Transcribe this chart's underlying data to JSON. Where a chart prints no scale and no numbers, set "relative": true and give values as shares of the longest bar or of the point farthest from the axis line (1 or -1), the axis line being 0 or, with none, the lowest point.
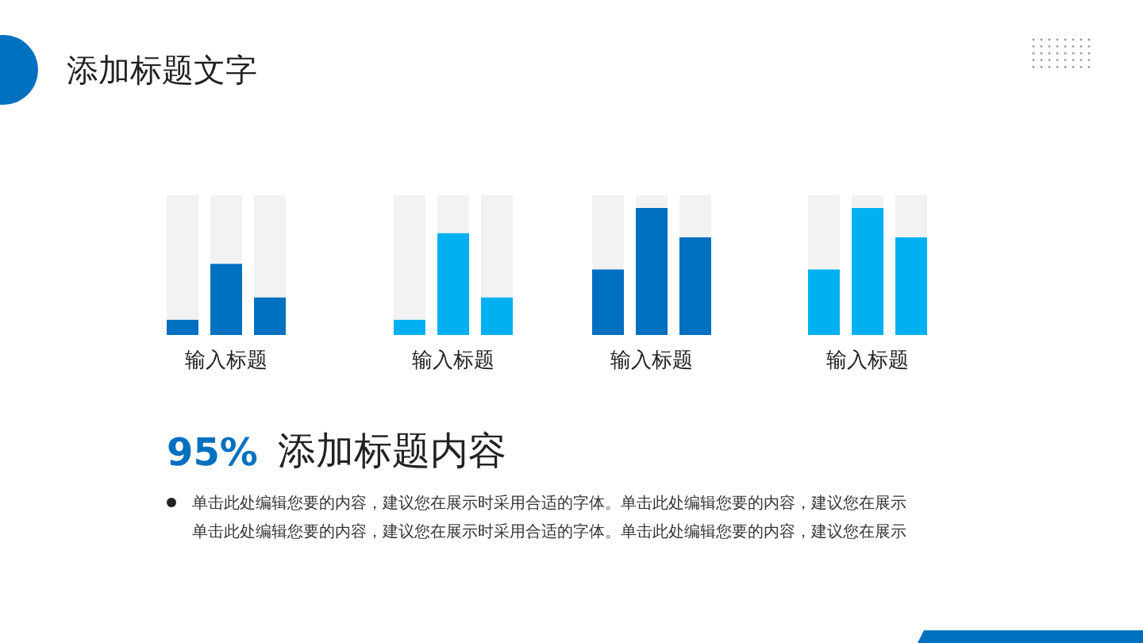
{
  "chart_data": [
    {
      "type": "bar",
      "relative": true,
      "stacked": true,
      "categories": [
        null,
        null,
        null
      ],
      "xlabel": "输入标题",
      "series": [
        {
          "color": "#0070c0",
          "values": [
            0.11,
            0.51,
            0.27
          ]
        },
        {
          "color": "#f2f2f2",
          "values": [
            0.89,
            0.49,
            0.73
          ]
        }
      ]
    },
    {
      "type": "bar",
      "relative": true,
      "stacked": true,
      "categories": [
        null,
        null,
        null
      ],
      "xlabel": "输入标题",
      "series": [
        {
          "color": "#00b0f0",
          "values": [
            0.11,
            0.73,
            0.27
          ]
        },
        {
          "color": "#f2f2f2",
          "values": [
            0.89,
            0.27,
            0.73
          ]
        }
      ]
    },
    {
      "type": "bar",
      "relative": true,
      "stacked": true,
      "categories": [
        null,
        null,
        null
      ],
      "xlabel": "输入标题",
      "series": [
        {
          "color": "#0070c0",
          "values": [
            0.47,
            0.91,
            0.7
          ]
        },
        {
          "color": "#f2f2f2",
          "values": [
            0.53,
            0.09,
            0.3
          ]
        }
      ]
    },
    {
      "type": "bar",
      "relative": true,
      "stacked": true,
      "categories": [
        null,
        null,
        null
      ],
      "xlabel": "输入标题",
      "series": [
        {
          "color": "#00b0f0",
          "values": [
            0.47,
            0.91,
            0.7
          ]
        },
        {
          "color": "#f2f2f2",
          "values": [
            0.53,
            0.09,
            0.3
          ]
        }
      ]
    },
    {
      "type": "other",
      "title": "添加标题文字",
      "annotations": [
        "95%",
        "添加标题内容",
        "单击此处编辑您要的内容，建议您在展示时采用合适的字体。单击此处编辑您要的内容，建议您在展示",
        "单击此处编辑您要的内容，建议您在展示时采用合适的字体。单击此处编辑您要的内容，建议您在展示"
      ]
    }
  ]
}
